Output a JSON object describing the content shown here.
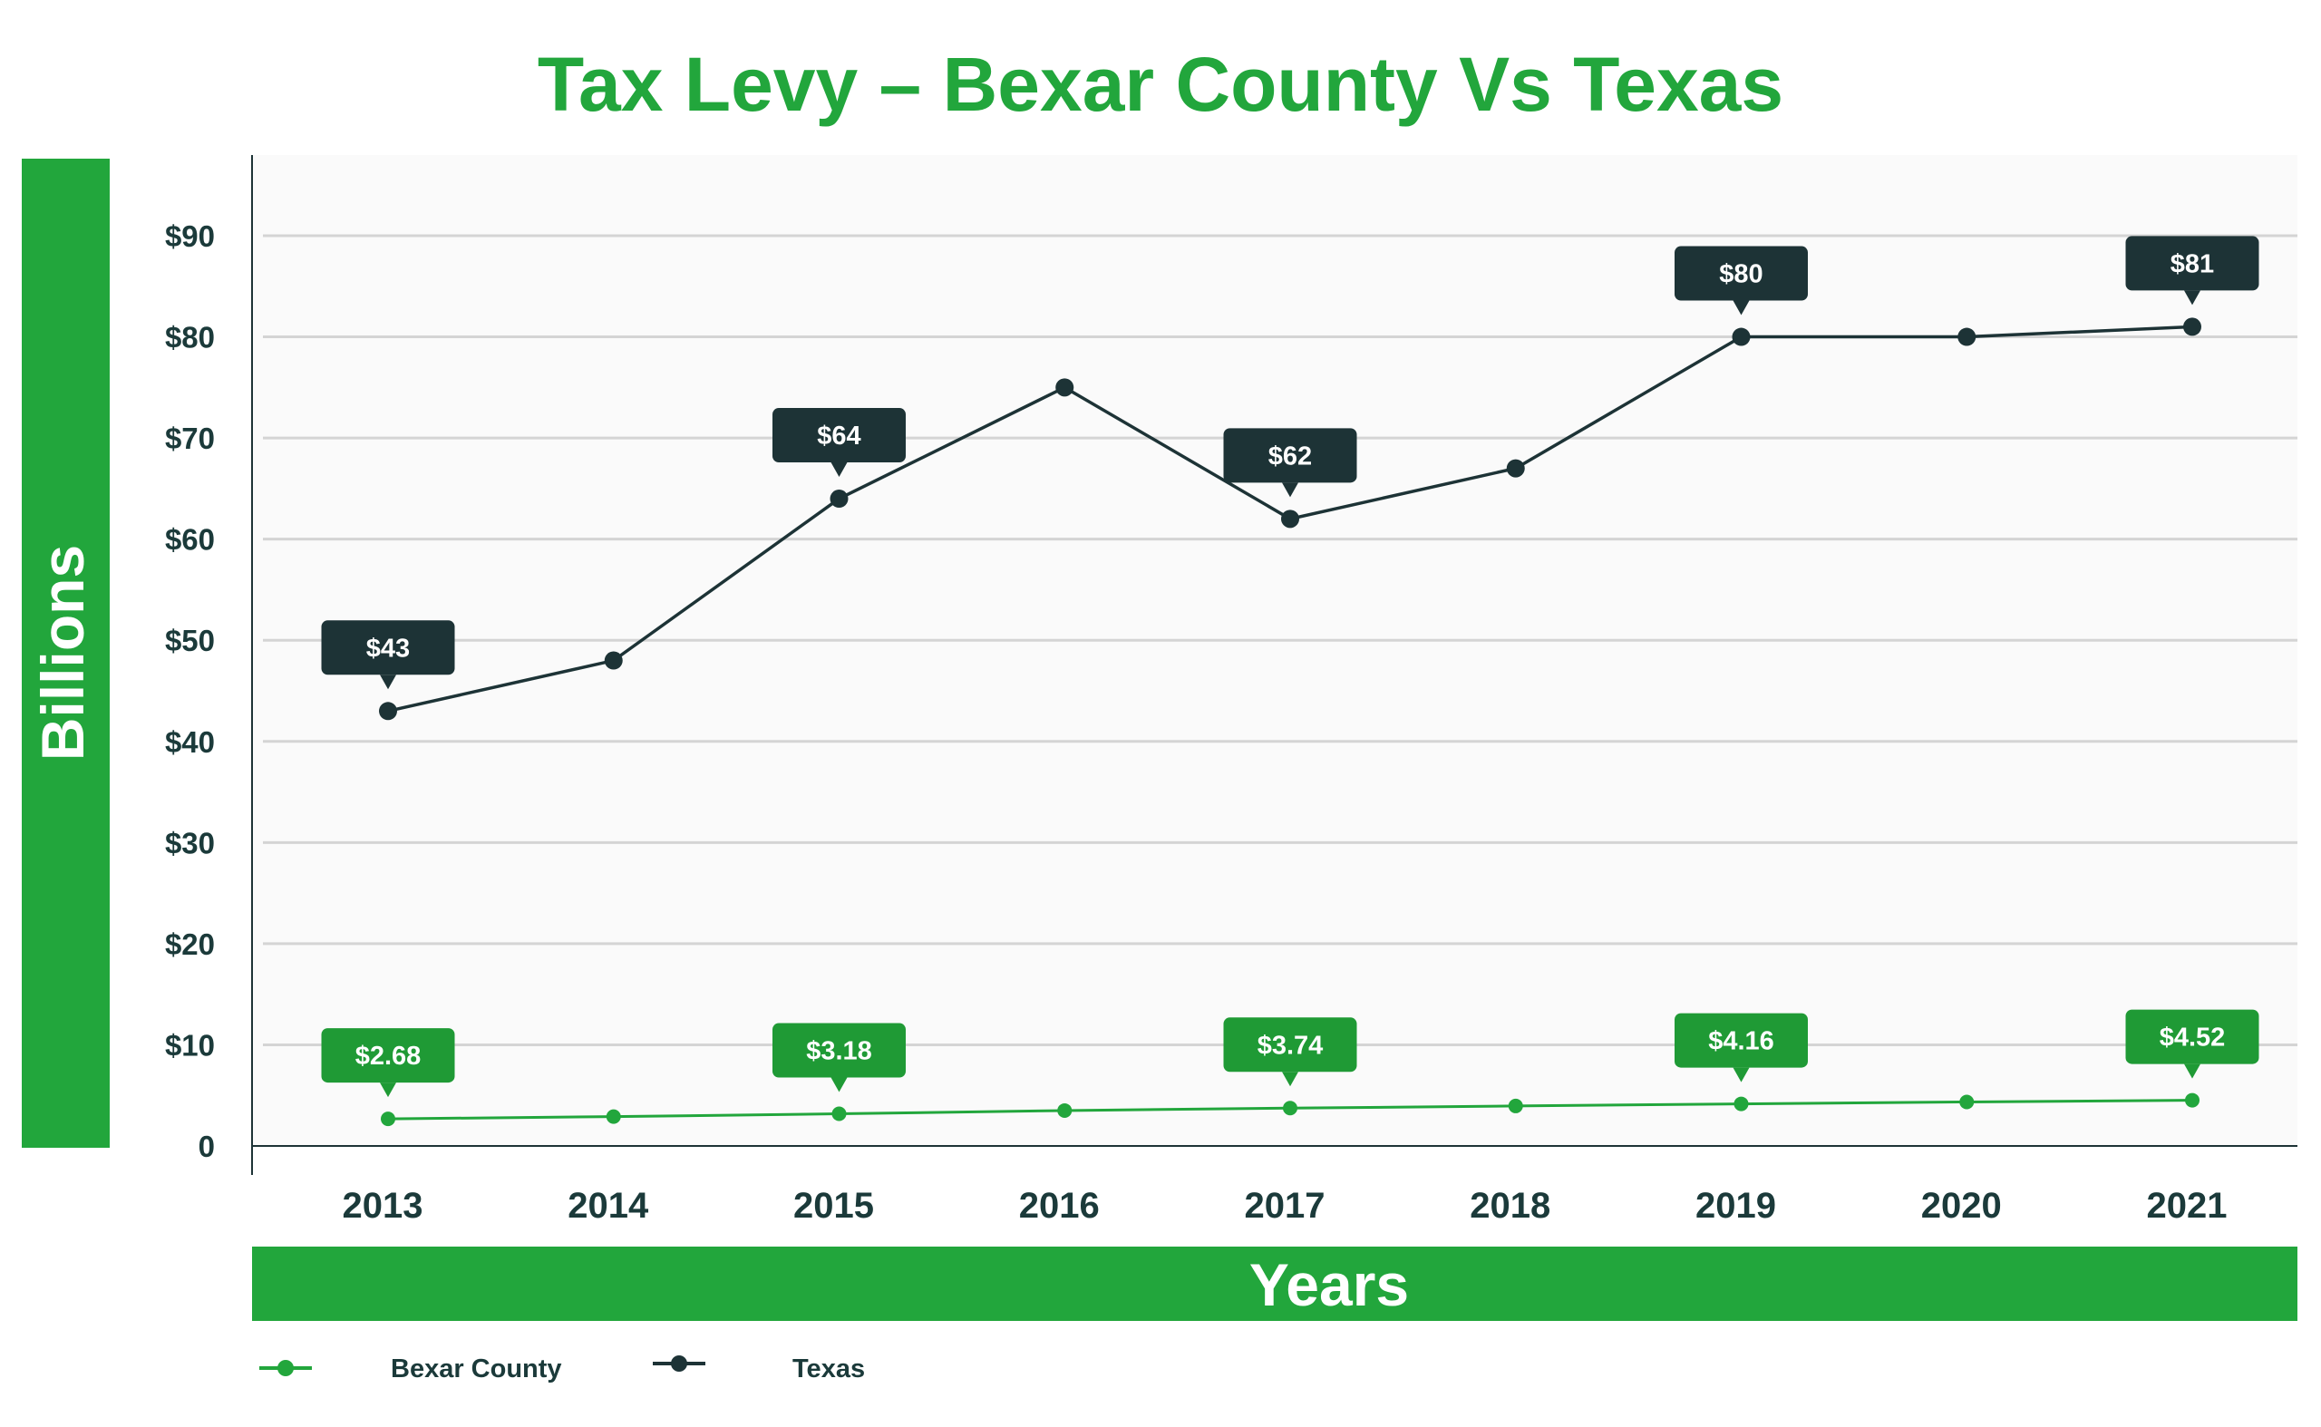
{
  "chart_data": {
    "type": "line",
    "title": "Tax Levy – Bexar County Vs Texas",
    "xlabel": "Years",
    "ylabel": "Billions",
    "categories": [
      "2013",
      "2014",
      "2015",
      "2016",
      "2017",
      "2018",
      "2019",
      "2020",
      "2021"
    ],
    "ylim": [
      0,
      97
    ],
    "yticks": [
      0,
      10,
      20,
      30,
      40,
      50,
      60,
      70,
      80,
      90
    ],
    "ytick_labels": [
      "0",
      "$10",
      "$20",
      "$30",
      "$40",
      "$50",
      "$60",
      "$70",
      "$80",
      "$90"
    ],
    "grid": true,
    "legend_position": "bottom-left",
    "series": [
      {
        "name": "Bexar County",
        "color": "#22a63c",
        "label_color": "#1f9a35",
        "values": [
          2.68,
          2.9,
          3.18,
          3.5,
          3.74,
          3.95,
          4.16,
          4.35,
          4.52
        ],
        "data_labels": [
          "$2.68",
          null,
          "$3.18",
          null,
          "$3.74",
          null,
          "$4.16",
          null,
          "$4.52"
        ]
      },
      {
        "name": "Texas",
        "color": "#1d3336",
        "label_color": "#1d3336",
        "values": [
          43,
          48,
          64,
          75,
          62,
          67,
          80,
          80,
          81
        ],
        "data_labels": [
          "$43",
          null,
          "$64",
          null,
          "$62",
          null,
          "$80",
          null,
          "$81"
        ]
      }
    ]
  },
  "colors": {
    "accent": "#22a63c",
    "dark": "#1d3336",
    "plot_bg": "#fafafa",
    "grid": "#d4d4d4"
  }
}
